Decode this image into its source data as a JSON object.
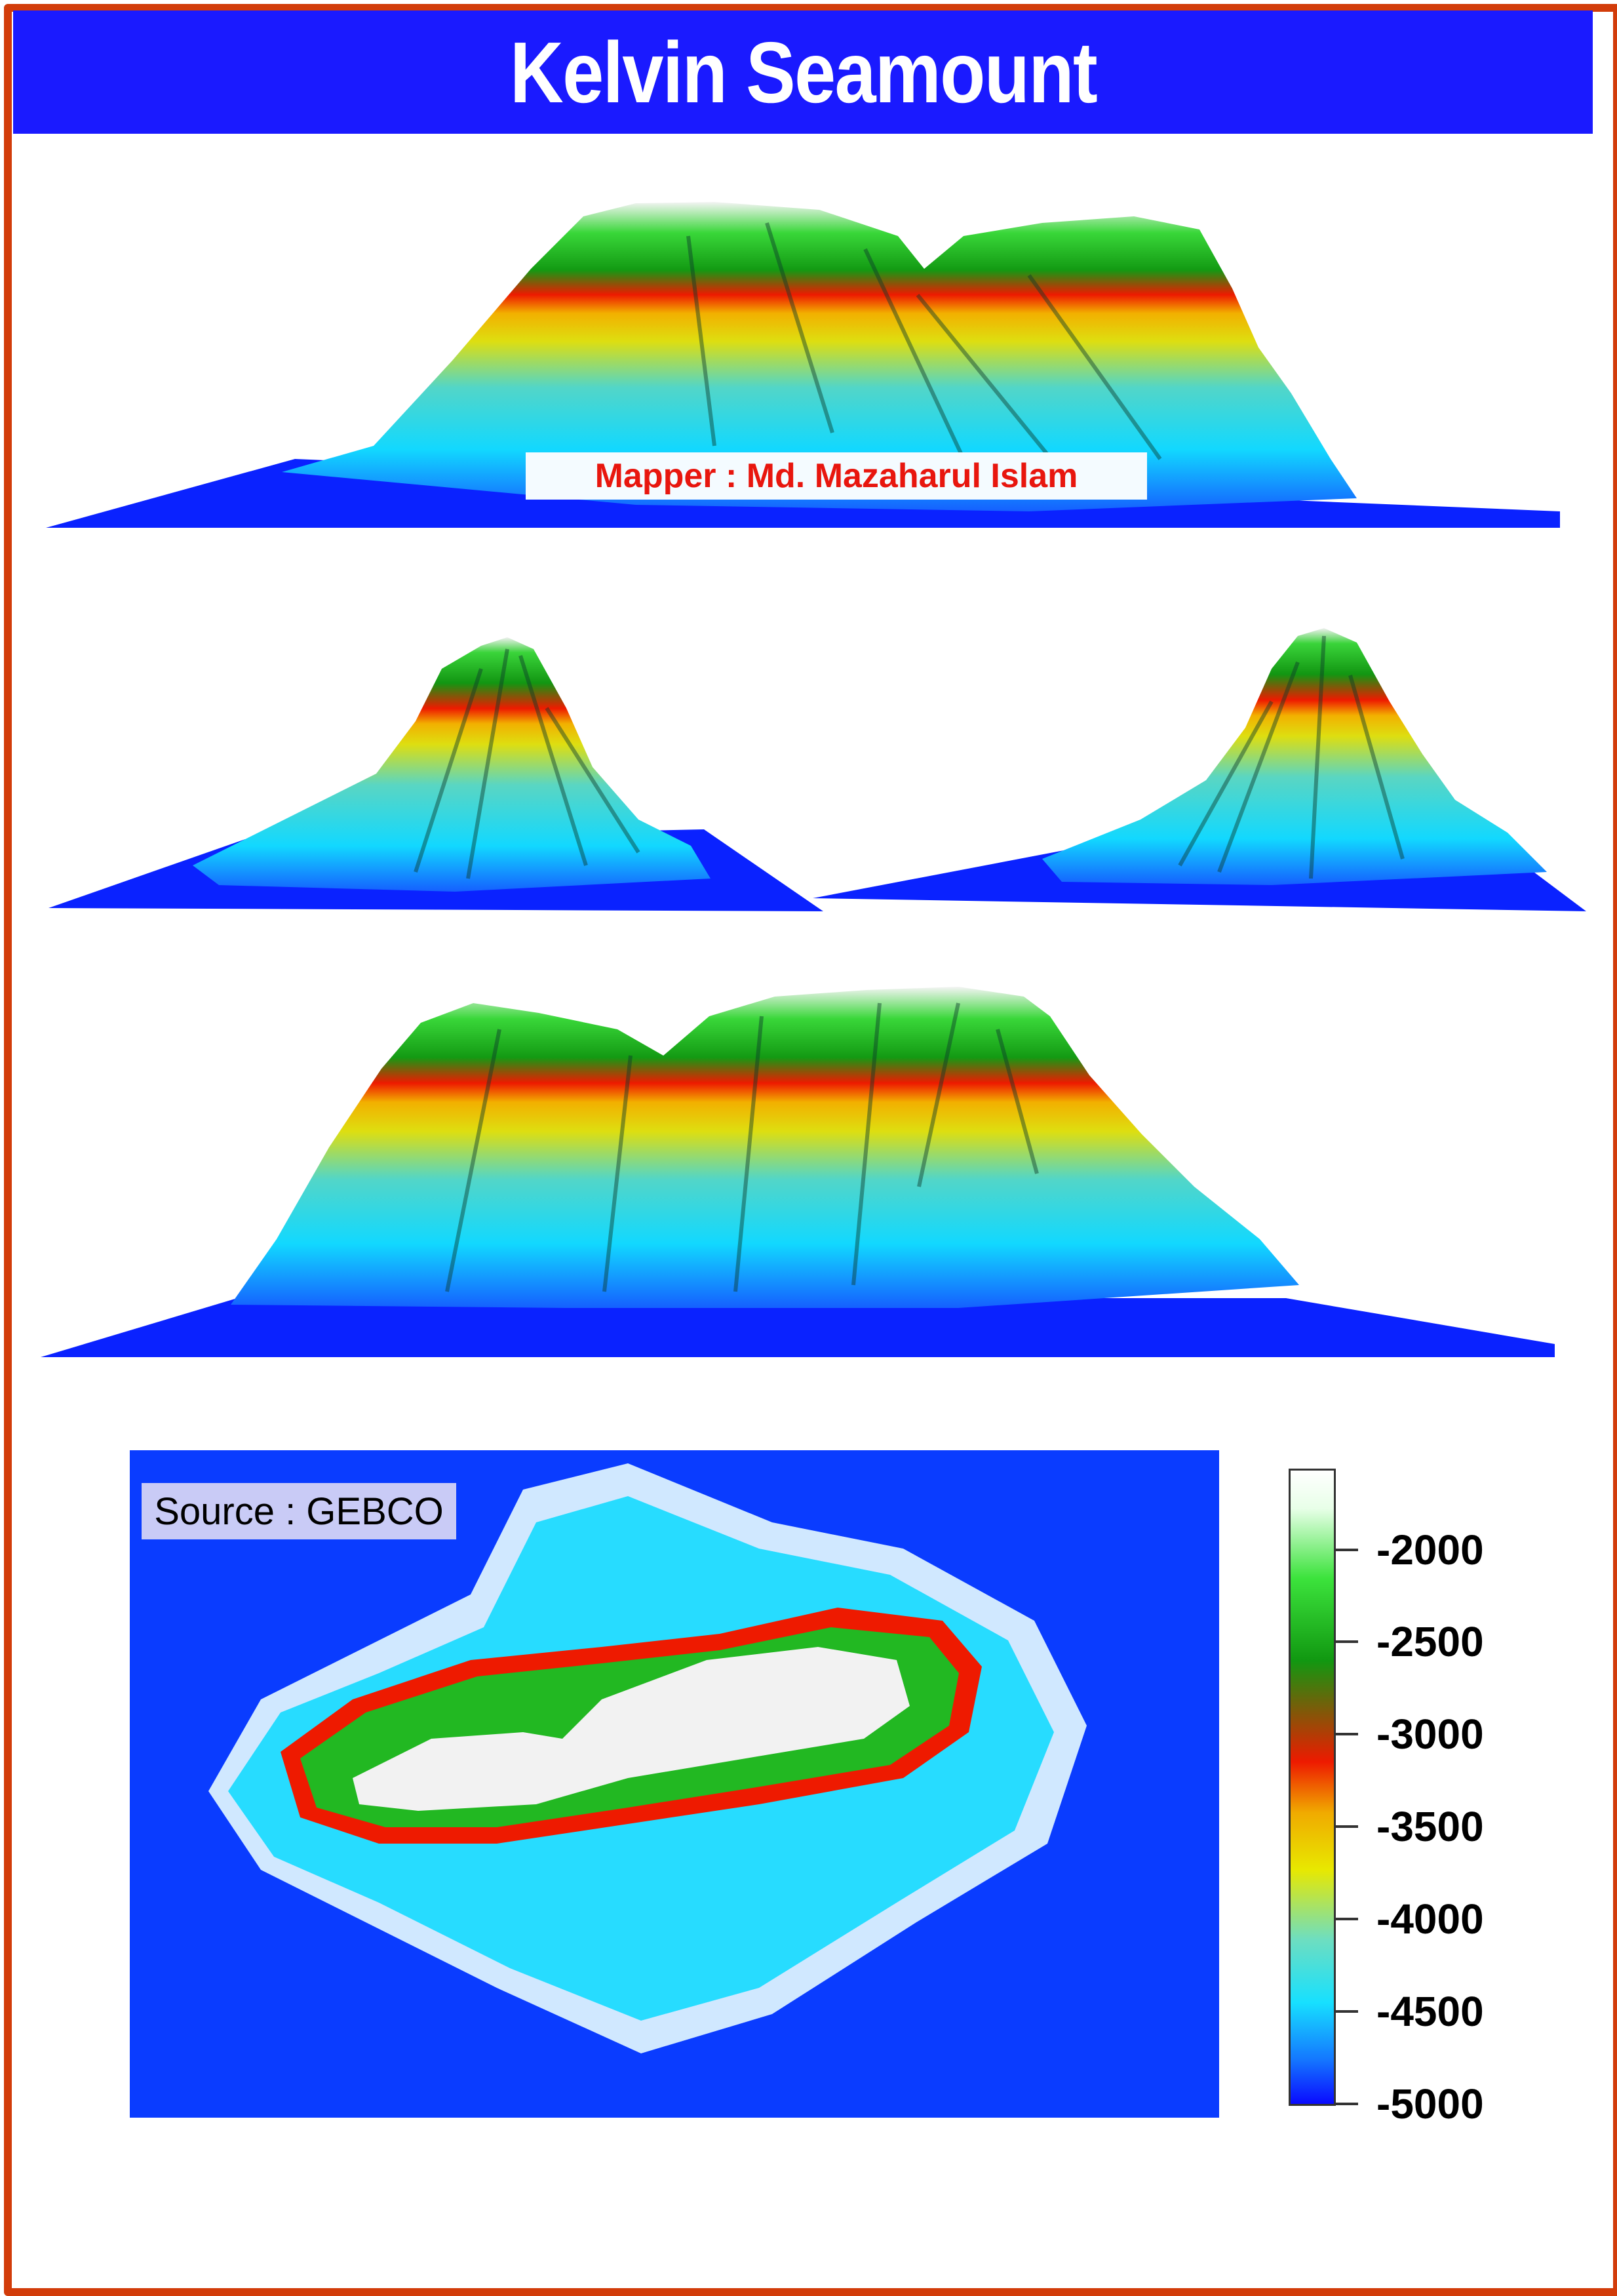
{
  "title": "Kelvin Seamount",
  "mapper_label": "Mapper : Md. Mazaharul Islam",
  "source_label": "Source : GEBCO",
  "views": [
    {
      "name": "north-side-view"
    },
    {
      "name": "east-side-view"
    },
    {
      "name": "west-side-view"
    },
    {
      "name": "south-side-view"
    }
  ],
  "colorbar": {
    "ticks": [
      "-2000",
      "-2500",
      "-3000",
      "-3500",
      "-4000",
      "-4500",
      "-5000"
    ],
    "colors": {
      "top": "#ffffff",
      "green": "#22c022",
      "red": "#ee1a00",
      "yellow": "#e8e800",
      "cyan": "#17e0ff",
      "deep": "#0a0aff"
    }
  },
  "colors": {
    "frame": "#d23c0a",
    "title_bar": "#1a1aff",
    "mapper_text": "#e8160e"
  }
}
